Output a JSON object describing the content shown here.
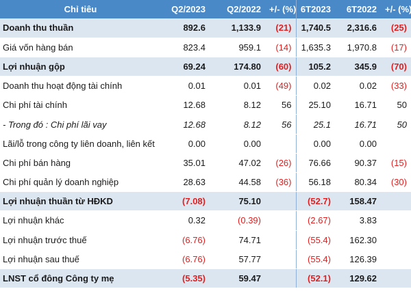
{
  "header": {
    "label": "Chỉ tiêu",
    "q2_2023": "Q2/2023",
    "q2_2022": "Q2/2022",
    "chg_q": "+/- (%)",
    "h1_2023": "6T2023",
    "h1_2022": "6T2022",
    "chg_h": "+/- (%)"
  },
  "rows": [
    {
      "label": "Doanh thu thuần",
      "q2_2023": "892.6",
      "q2_2022": "1,133.9",
      "chg_q": "(21)",
      "h1_2023": "1,740.5",
      "h1_2022": "2,316.6",
      "chg_h": "(25)"
    },
    {
      "label": "Giá vốn hàng bán",
      "q2_2023": "823.4",
      "q2_2022": "959.1",
      "chg_q": "(14)",
      "h1_2023": "1,635.3",
      "h1_2022": "1,970.8",
      "chg_h": "(17)"
    },
    {
      "label": "Lợi nhuận gộp",
      "q2_2023": "69.24",
      "q2_2022": "174.80",
      "chg_q": "(60)",
      "h1_2023": "105.2",
      "h1_2022": "345.9",
      "chg_h": "(70)"
    },
    {
      "label": "Doanh thu hoạt động tài chính",
      "q2_2023": "0.01",
      "q2_2022": "0.01",
      "chg_q": "(49)",
      "h1_2023": "0.02",
      "h1_2022": "0.02",
      "chg_h": "(33)"
    },
    {
      "label": "Chi phí tài chính",
      "q2_2023": "12.68",
      "q2_2022": "8.12",
      "chg_q": "56",
      "h1_2023": "25.10",
      "h1_2022": "16.71",
      "chg_h": "50"
    },
    {
      "label": "- Trong đó : Chi phí lãi vay",
      "q2_2023": "12.68",
      "q2_2022": "8.12",
      "chg_q": "56",
      "h1_2023": "25.1",
      "h1_2022": "16.71",
      "chg_h": "50"
    },
    {
      "label": "Lãi/lỗ trong công ty liên doanh, liên kết",
      "q2_2023": "0.00",
      "q2_2022": "0.00",
      "chg_q": "",
      "h1_2023": "0.00",
      "h1_2022": "0.00",
      "chg_h": ""
    },
    {
      "label": "Chi phí bán hàng",
      "q2_2023": "35.01",
      "q2_2022": "47.02",
      "chg_q": "(26)",
      "h1_2023": "76.66",
      "h1_2022": "90.37",
      "chg_h": "(15)"
    },
    {
      "label": "Chi phí quản lý doanh nghiệp",
      "q2_2023": "28.63",
      "q2_2022": "44.58",
      "chg_q": "(36)",
      "h1_2023": "56.18",
      "h1_2022": "80.34",
      "chg_h": "(30)"
    },
    {
      "label": "Lợi nhuận thuần từ HĐKD",
      "q2_2023": "(7.08)",
      "q2_2022": "75.10",
      "chg_q": "",
      "h1_2023": "(52.7)",
      "h1_2022": "158.47",
      "chg_h": ""
    },
    {
      "label": "Lợi nhuận khác",
      "q2_2023": "0.32",
      "q2_2022": "(0.39)",
      "chg_q": "",
      "h1_2023": "(2.67)",
      "h1_2022": "3.83",
      "chg_h": ""
    },
    {
      "label": "Lợi nhuận trước thuế",
      "q2_2023": "(6.76)",
      "q2_2022": "74.71",
      "chg_q": "",
      "h1_2023": "(55.4)",
      "h1_2022": "162.30",
      "chg_h": ""
    },
    {
      "label": "Lợi nhuận sau thuế",
      "q2_2023": "(6.76)",
      "q2_2022": "57.77",
      "chg_q": "",
      "h1_2023": "(55.4)",
      "h1_2022": "126.39",
      "chg_h": ""
    },
    {
      "label": "LNST cổ đông Công ty mẹ",
      "q2_2023": "(5.35)",
      "q2_2022": "59.47",
      "chg_q": "",
      "h1_2023": "(52.1)",
      "h1_2022": "129.62",
      "chg_h": ""
    }
  ],
  "colors": {
    "header_bg": "#4a89c8",
    "highlight_row_bg": "#dce6f1",
    "negative_text": "#e02020"
  }
}
